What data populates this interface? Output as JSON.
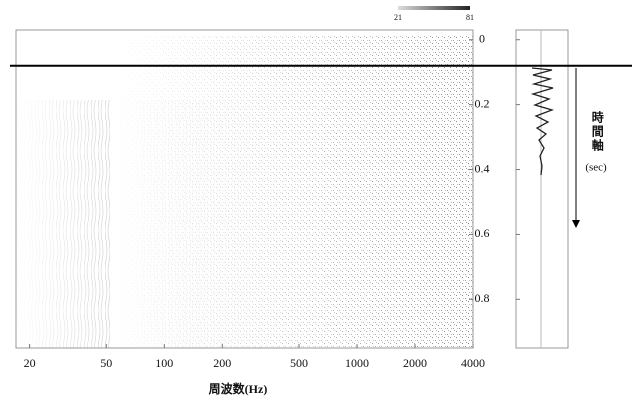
{
  "chart_data": {
    "type": "spectrogram",
    "xlabel": "周波数(Hz)",
    "xscale": "log",
    "xlim": [
      17,
      4000
    ],
    "xticks": [
      20,
      50,
      100,
      200,
      500,
      1000,
      2000,
      4000
    ],
    "ylim": [
      -0.03,
      0.95
    ],
    "yticks": [
      0,
      0.2,
      0.4,
      0.6,
      0.8
    ],
    "hline": 0.08,
    "colorbar_ticks": [
      21,
      81
    ],
    "time_axis_label": "時間軸",
    "time_axis_unit": "(sec)"
  }
}
